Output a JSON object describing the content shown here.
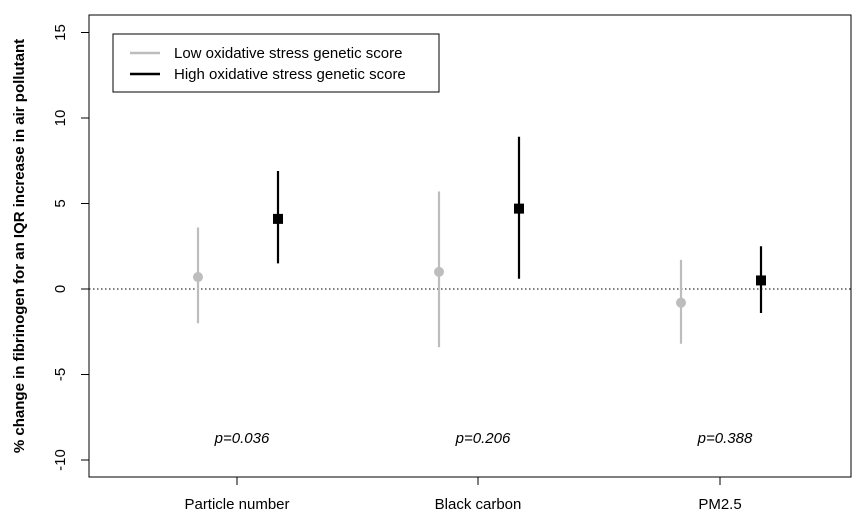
{
  "chart_data": {
    "type": "errorbar",
    "title": "",
    "xlabel": "",
    "ylabel": "% change in fibrinogen for an IQR increase in air pollutant",
    "ylim": [
      -11,
      16
    ],
    "yticks": [
      "-10",
      "-5",
      "0",
      "5",
      "10",
      "15"
    ],
    "categories": [
      "Particle number",
      "Black carbon",
      "PM2.5"
    ],
    "reference_line": {
      "y": 0,
      "style": "dotted"
    },
    "legend": {
      "position": "top-left",
      "entries": [
        "Low oxidative stress genetic score",
        "High oxidative stress genetic score"
      ]
    },
    "series": [
      {
        "name": "Low oxidative stress genetic score",
        "color": "#bdbdbd",
        "marker": "circle",
        "points": [
          {
            "estimate": 0.7,
            "lower": -2.0,
            "upper": 3.6
          },
          {
            "estimate": 1.0,
            "lower": -3.4,
            "upper": 5.7
          },
          {
            "estimate": -0.8,
            "lower": -3.2,
            "upper": 1.7
          }
        ]
      },
      {
        "name": "High oxidative stress genetic score",
        "color": "#000000",
        "marker": "square",
        "points": [
          {
            "estimate": 4.1,
            "lower": 1.5,
            "upper": 6.9
          },
          {
            "estimate": 4.7,
            "lower": 0.6,
            "upper": 8.9
          },
          {
            "estimate": 0.5,
            "lower": -1.4,
            "upper": 2.5
          }
        ]
      }
    ],
    "annotations": [
      "p=0.036",
      "p=0.206",
      "p=0.388"
    ]
  }
}
